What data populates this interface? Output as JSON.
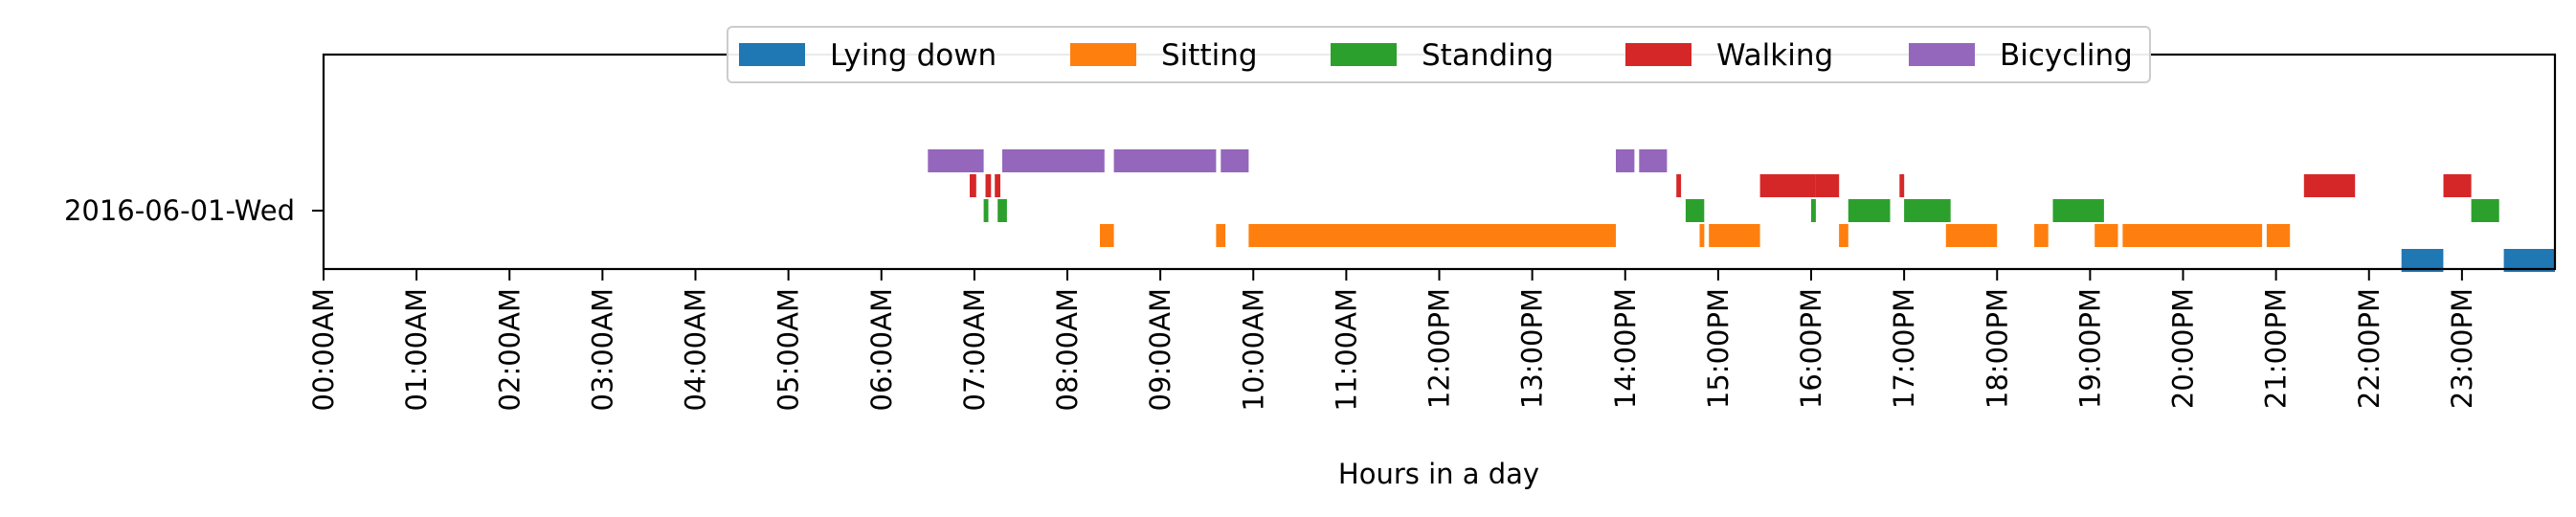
{
  "chart_data": {
    "type": "timeline",
    "xlabel": "Hours in a day",
    "ylabel": "",
    "xlim": [
      0,
      24
    ],
    "x_ticks": [
      {
        "value": 0,
        "label": "00:00AM"
      },
      {
        "value": 1,
        "label": "01:00AM"
      },
      {
        "value": 2,
        "label": "02:00AM"
      },
      {
        "value": 3,
        "label": "03:00AM"
      },
      {
        "value": 4,
        "label": "04:00AM"
      },
      {
        "value": 5,
        "label": "05:00AM"
      },
      {
        "value": 6,
        "label": "06:00AM"
      },
      {
        "value": 7,
        "label": "07:00AM"
      },
      {
        "value": 8,
        "label": "08:00AM"
      },
      {
        "value": 9,
        "label": "09:00AM"
      },
      {
        "value": 10,
        "label": "10:00AM"
      },
      {
        "value": 11,
        "label": "11:00AM"
      },
      {
        "value": 12,
        "label": "12:00PM"
      },
      {
        "value": 13,
        "label": "13:00PM"
      },
      {
        "value": 14,
        "label": "14:00PM"
      },
      {
        "value": 15,
        "label": "15:00PM"
      },
      {
        "value": 16,
        "label": "16:00PM"
      },
      {
        "value": 17,
        "label": "17:00PM"
      },
      {
        "value": 18,
        "label": "18:00PM"
      },
      {
        "value": 19,
        "label": "19:00PM"
      },
      {
        "value": 20,
        "label": "20:00PM"
      },
      {
        "value": 21,
        "label": "21:00PM"
      },
      {
        "value": 22,
        "label": "22:00PM"
      },
      {
        "value": 23,
        "label": "23:00PM"
      }
    ],
    "categories": [
      "2016-06-01-Wed"
    ],
    "legend_position": "top-center",
    "grid": false,
    "series": [
      {
        "name": "Lying down",
        "color": "#1f77b4",
        "level": -2,
        "intervals": [
          [
            22.35,
            22.8
          ],
          [
            23.45,
            24.0
          ]
        ]
      },
      {
        "name": "Sitting",
        "color": "#ff7f0e",
        "level": -1,
        "intervals": [
          [
            8.35,
            8.5
          ],
          [
            9.6,
            9.7
          ],
          [
            9.95,
            13.9
          ],
          [
            14.8,
            14.85
          ],
          [
            14.9,
            15.45
          ],
          [
            16.3,
            16.4
          ],
          [
            17.45,
            18.0
          ],
          [
            18.4,
            18.55
          ],
          [
            19.05,
            19.3
          ],
          [
            19.35,
            20.85
          ],
          [
            20.9,
            21.15
          ]
        ]
      },
      {
        "name": "Standing",
        "color": "#2ca02c",
        "level": 0,
        "intervals": [
          [
            7.1,
            7.15
          ],
          [
            7.25,
            7.35
          ],
          [
            14.65,
            14.85
          ],
          [
            16.0,
            16.05
          ],
          [
            16.4,
            16.85
          ],
          [
            17.0,
            17.5
          ],
          [
            18.6,
            19.15
          ],
          [
            23.1,
            23.4
          ]
        ]
      },
      {
        "name": "Walking",
        "color": "#d62728",
        "level": 1,
        "intervals": [
          [
            6.95,
            7.02
          ],
          [
            7.12,
            7.18
          ],
          [
            7.22,
            7.28
          ],
          [
            14.55,
            14.6
          ],
          [
            15.45,
            16.05
          ],
          [
            16.05,
            16.3
          ],
          [
            16.95,
            17.0
          ],
          [
            21.3,
            21.85
          ],
          [
            22.8,
            23.1
          ]
        ]
      },
      {
        "name": "Bicycling",
        "color": "#9467bd",
        "level": 2,
        "intervals": [
          [
            6.5,
            7.1
          ],
          [
            7.3,
            8.4
          ],
          [
            8.5,
            9.6
          ],
          [
            9.65,
            9.95
          ],
          [
            13.9,
            14.1
          ],
          [
            14.15,
            14.45
          ]
        ]
      }
    ]
  }
}
